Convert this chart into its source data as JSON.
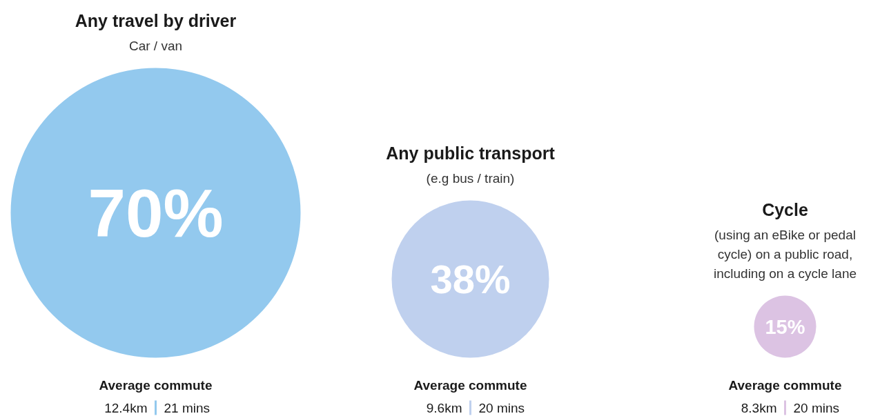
{
  "chart_data": {
    "type": "other",
    "categories": [
      "Any travel by driver",
      "Any public transport",
      "Cycle"
    ],
    "values": [
      70,
      38,
      15
    ],
    "colors": [
      "#93c9ee",
      "#bfd0ee",
      "#dcc3e3"
    ],
    "value_labels": [
      "70%",
      "38%",
      "15%"
    ],
    "annotations": [
      "Car / van",
      "Average commute",
      "12.4km",
      "21 mins",
      "(e.g bus / train)",
      "Average commute",
      "9.6km",
      "20 mins",
      "(using an eBike or pedal\ncycle) on a public road,\nincluding on a cycle lane",
      "Average commute",
      "8.3km",
      "20 mins"
    ]
  }
}
